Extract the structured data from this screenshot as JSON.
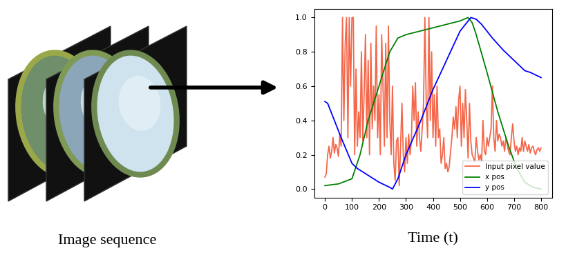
{
  "chart_data": {
    "type": "line",
    "x_label": "Time (t)",
    "annotations": [
      {
        "text": "Image sequence"
      }
    ],
    "xlim": [
      -40,
      840
    ],
    "xticks": [
      0,
      100,
      200,
      300,
      400,
      500,
      600,
      700,
      800
    ],
    "ylim": [
      -0.05,
      1.05
    ],
    "yticks": [
      {
        "value": 0.0,
        "label": "0.0"
      },
      {
        "value": 0.2,
        "label": "0.2"
      },
      {
        "value": 0.4,
        "label": "0.4"
      },
      {
        "value": 0.6,
        "label": "0.6"
      },
      {
        "value": 0.8,
        "label": "0.8"
      },
      {
        "value": 1.0,
        "label": "1.0"
      }
    ],
    "grid": false,
    "legend": "lower right",
    "series": [
      {
        "name": "Input pixel value",
        "color": "#f4674a",
        "x": [
          0,
          5,
          10,
          15,
          20,
          25,
          30,
          35,
          40,
          45,
          50,
          55,
          60,
          65,
          70,
          75,
          80,
          85,
          90,
          95,
          100,
          105,
          110,
          115,
          120,
          125,
          130,
          135,
          140,
          145,
          150,
          155,
          160,
          165,
          170,
          175,
          180,
          185,
          190,
          195,
          200,
          205,
          210,
          215,
          220,
          225,
          230,
          235,
          240,
          245,
          250,
          255,
          260,
          265,
          270,
          275,
          280,
          285,
          290,
          295,
          300,
          305,
          310,
          315,
          320,
          325,
          330,
          335,
          340,
          345,
          350,
          355,
          360,
          365,
          370,
          375,
          380,
          385,
          390,
          395,
          400,
          405,
          410,
          415,
          420,
          425,
          430,
          435,
          440,
          445,
          450,
          455,
          460,
          465,
          470,
          475,
          480,
          485,
          490,
          495,
          500,
          505,
          510,
          515,
          520,
          525,
          530,
          535,
          540,
          545,
          550,
          555,
          560,
          565,
          570,
          575,
          580,
          585,
          590,
          595,
          600,
          605,
          610,
          615,
          620,
          625,
          630,
          635,
          640,
          645,
          650,
          655,
          660,
          665,
          670,
          675,
          680,
          685,
          690,
          695,
          700,
          705,
          710,
          715,
          720,
          725,
          730,
          735,
          740,
          745,
          750,
          755,
          760,
          765,
          770,
          775,
          780,
          785,
          790,
          795,
          800
        ],
        "values": [
          0.07,
          0.09,
          0.2,
          0.25,
          0.18,
          0.22,
          0.3,
          0.21,
          0.26,
          0.24,
          0.19,
          0.32,
          0.25,
          1.0,
          0.4,
          0.85,
          1.0,
          0.3,
          1.0,
          0.6,
          1.0,
          1.0,
          0.2,
          0.7,
          0.25,
          0.45,
          0.3,
          0.8,
          0.28,
          0.55,
          0.9,
          0.3,
          0.75,
          0.2,
          0.85,
          0.35,
          0.6,
          0.4,
          0.95,
          0.3,
          0.55,
          0.2,
          0.9,
          0.6,
          0.25,
          0.85,
          0.3,
          0.95,
          0.4,
          0.2,
          0.6,
          0.15,
          0.05,
          0.28,
          0.3,
          0.02,
          0.25,
          0.5,
          0.2,
          0.1,
          0.3,
          0.15,
          0.32,
          0.2,
          0.28,
          0.6,
          0.4,
          0.62,
          0.25,
          0.45,
          0.3,
          0.22,
          0.35,
          0.5,
          1.0,
          0.5,
          0.3,
          1.0,
          0.4,
          0.8,
          0.3,
          0.55,
          0.25,
          0.6,
          0.3,
          0.35,
          0.15,
          0.2,
          0.3,
          0.12,
          0.15,
          0.1,
          0.13,
          0.22,
          0.3,
          0.42,
          0.35,
          0.48,
          0.3,
          0.52,
          0.6,
          0.25,
          0.5,
          0.3,
          0.58,
          0.4,
          0.18,
          0.5,
          0.28,
          0.2,
          0.18,
          0.16,
          0.3,
          0.22,
          0.17,
          0.2,
          0.16,
          0.4,
          0.22,
          0.2,
          0.3,
          0.25,
          0.3,
          0.35,
          0.6,
          0.3,
          0.22,
          0.4,
          0.28,
          0.32,
          0.3,
          0.25,
          0.28,
          0.22,
          0.3,
          0.26,
          0.22,
          0.2,
          0.3,
          0.38,
          0.28,
          0.22,
          0.25,
          0.2,
          0.24,
          0.22,
          0.3,
          0.22,
          0.28,
          0.25,
          0.22,
          0.26,
          0.21,
          0.24,
          0.25,
          0.22,
          0.2,
          0.23,
          0.24,
          0.22,
          0.24
        ]
      },
      {
        "name": "x pos",
        "color": "green",
        "x": [
          0,
          50,
          100,
          130,
          160,
          200,
          240,
          270,
          300,
          350,
          400,
          450,
          500,
          530,
          545,
          560,
          600,
          640,
          680,
          710,
          740,
          770,
          800
        ],
        "values": [
          0.02,
          0.03,
          0.06,
          0.2,
          0.4,
          0.6,
          0.8,
          0.88,
          0.9,
          0.92,
          0.94,
          0.96,
          0.98,
          1.0,
          0.97,
          0.9,
          0.68,
          0.45,
          0.25,
          0.12,
          0.04,
          0.01,
          0.0
        ]
      },
      {
        "name": "y pos",
        "color": "blue",
        "x": [
          0,
          10,
          30,
          60,
          100,
          120,
          160,
          200,
          240,
          250,
          270,
          300,
          350,
          400,
          450,
          500,
          530,
          540,
          560,
          580,
          620,
          660,
          700,
          740,
          760,
          800
        ],
        "values": [
          0.51,
          0.5,
          0.42,
          0.3,
          0.15,
          0.12,
          0.08,
          0.04,
          0.01,
          0.0,
          0.06,
          0.2,
          0.38,
          0.58,
          0.75,
          0.92,
          0.98,
          1.0,
          0.99,
          0.96,
          0.88,
          0.81,
          0.75,
          0.69,
          0.68,
          0.65
        ]
      }
    ]
  }
}
